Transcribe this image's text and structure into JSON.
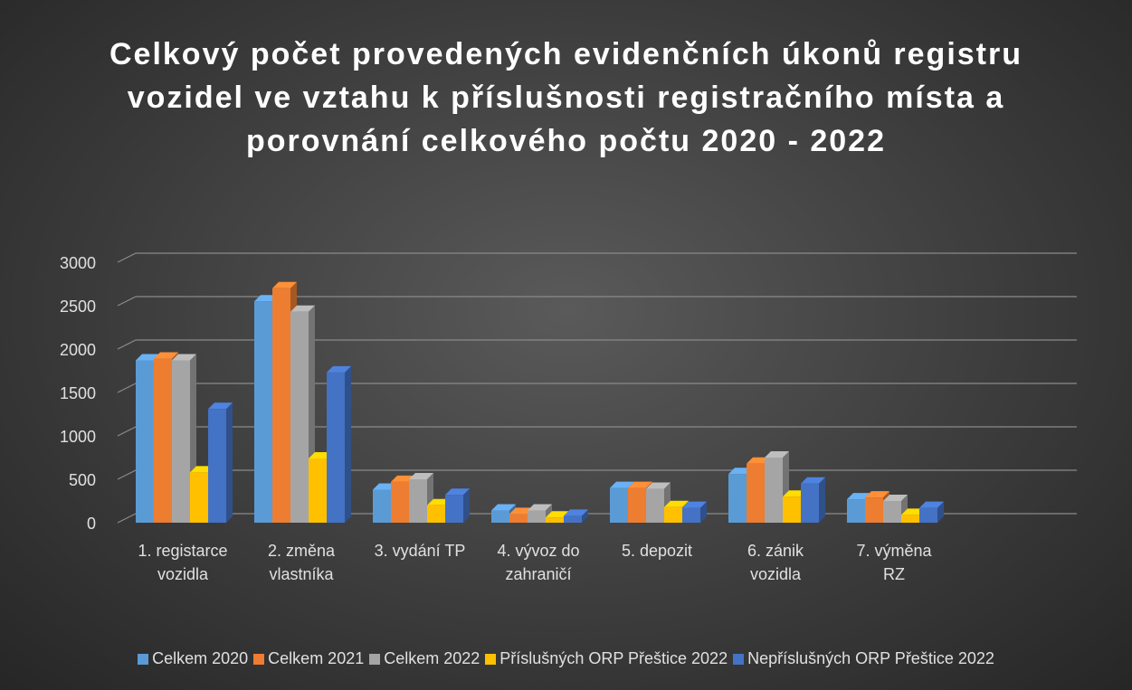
{
  "chart_data": {
    "type": "bar",
    "title": "Celkový počet provedených evidenčních úkonů registru vozidel ve vztahu k příslušnosti registračního místa a porovnání celkového počtu 2020 - 2022",
    "categories": [
      "1. registarce vozidla",
      "2. změna vlastníka",
      "3. vydání TP",
      "4. vývoz do zahraničí",
      "5. depozit",
      "6. zánik vozidla",
      "7. výměna RZ"
    ],
    "series": [
      {
        "name": "Celkem 2020",
        "color": "#5b9bd5",
        "values": [
          1870,
          2550,
          380,
          140,
          400,
          560,
          270
        ]
      },
      {
        "name": "Celkem 2021",
        "color": "#ed7d31",
        "values": [
          1890,
          2700,
          470,
          100,
          400,
          680,
          290
        ]
      },
      {
        "name": "Celkem 2022",
        "color": "#a5a5a5",
        "values": [
          1870,
          2430,
          500,
          140,
          390,
          750,
          250
        ]
      },
      {
        "name": "Příslušných ORP Přeštice 2022",
        "color": "#ffc000",
        "values": [
          580,
          740,
          200,
          60,
          180,
          300,
          90
        ]
      },
      {
        "name": "Nepříslušných ORP Přeštice 2022",
        "color": "#4472c4",
        "values": [
          1310,
          1730,
          320,
          80,
          170,
          450,
          170
        ]
      }
    ],
    "ylim": [
      0,
      3000
    ],
    "yticks": [
      0,
      500,
      1000,
      1500,
      2000,
      2500,
      3000
    ],
    "grid": true,
    "legend": "bottom"
  }
}
